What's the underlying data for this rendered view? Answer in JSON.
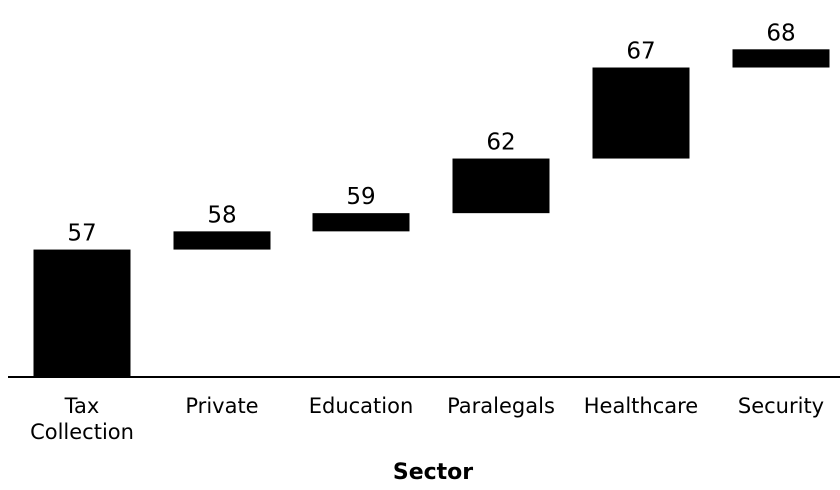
{
  "chart_data": {
    "type": "bar",
    "subtype": "waterfall",
    "title": "",
    "xlabel": "Sector",
    "ylabel": "",
    "categories": [
      [
        "Tax",
        "Collection"
      ],
      [
        "Private"
      ],
      [
        "Education"
      ],
      [
        "Paralegals"
      ],
      [
        "Healthcare"
      ],
      [
        "Security"
      ]
    ],
    "values": [
      57,
      58,
      59,
      62,
      67,
      68
    ],
    "value_labels": [
      "57",
      "58",
      "59",
      "62",
      "67",
      "68"
    ],
    "ylim": [
      50,
      69.5
    ],
    "grid": false,
    "legend": "none",
    "colors": {
      "bar": "#000000",
      "axis": "#000000",
      "text": "#000000",
      "background": "#ffffff"
    }
  }
}
